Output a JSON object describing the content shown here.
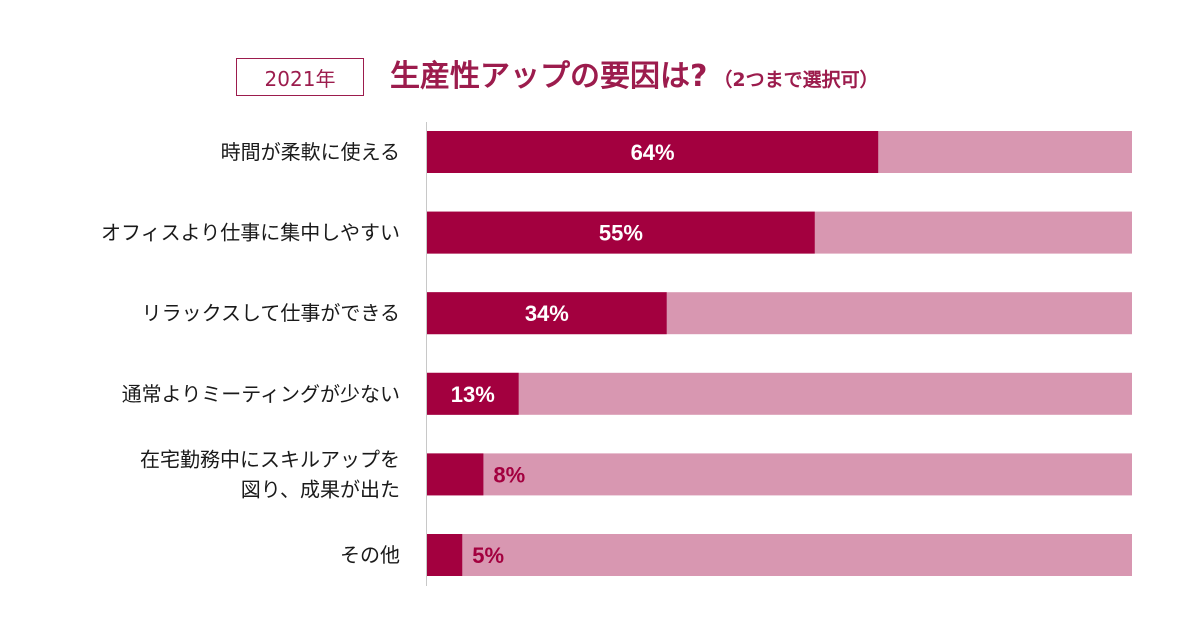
{
  "header": {
    "year_label": "2021年",
    "title": "生産性アップの要因は?",
    "note": "（2つまで選択可）"
  },
  "colors": {
    "accent": "#a3003f",
    "track": "#d897b1",
    "axis": "#c8c8c8",
    "label_text": "#1a1a1a",
    "value_inside": "#ffffff",
    "value_outside": "#a3003f"
  },
  "chart_data": {
    "type": "bar",
    "orientation": "horizontal",
    "title": "生産性アップの要因は?",
    "xlim": [
      0,
      100
    ],
    "grid": false,
    "categories": [
      [
        "時間が柔軟に使える"
      ],
      [
        "オフィスより仕事に集中しやすい"
      ],
      [
        "リラックスして仕事ができる"
      ],
      [
        "通常よりミーティングが少ない"
      ],
      [
        "在宅勤務中にスキルアップを",
        "図り、成果が出た"
      ],
      [
        "その他"
      ]
    ],
    "values": [
      64,
      55,
      34,
      13,
      8,
      5
    ],
    "value_labels": [
      "64%",
      "55%",
      "34%",
      "13%",
      "8%",
      "5%"
    ]
  }
}
